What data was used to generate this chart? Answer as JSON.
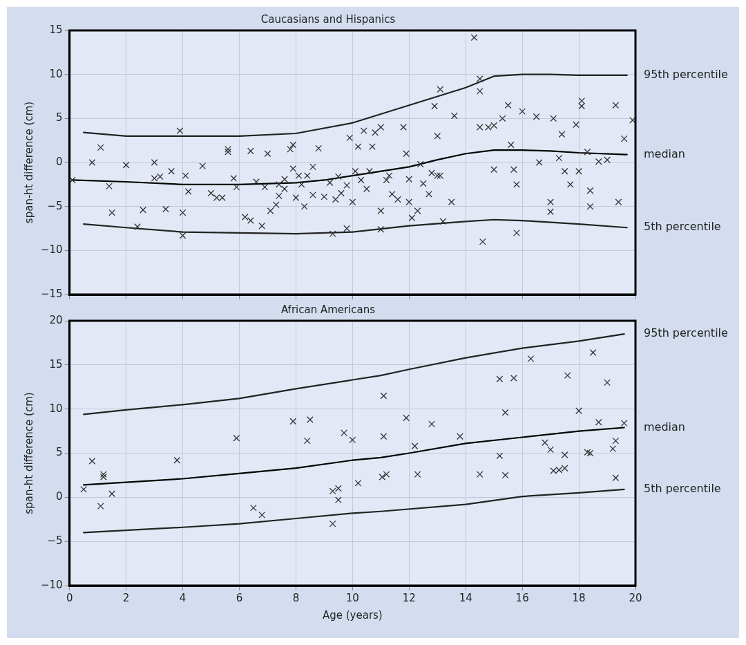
{
  "chart_data": [
    {
      "type": "scatter",
      "title": "Caucasians and Hispanics",
      "ylabel": "span-ht difference (cm)",
      "xlim": [
        0,
        20
      ],
      "xticks": [
        0,
        2,
        4,
        6,
        8,
        10,
        12,
        14,
        16,
        18,
        20
      ],
      "ylim": [
        -15,
        15
      ],
      "yticks": [
        -15,
        -10,
        -5,
        0,
        5,
        10,
        15
      ],
      "grid": true,
      "legend": false,
      "tick_labels": "y",
      "series": [
        {
          "marker": "cross",
          "color": "#333333",
          "x": [
            0.1,
            0.8,
            1.1,
            1.4,
            1.5,
            2.0,
            2.4,
            2.6,
            3.0,
            3.0,
            3.2,
            3.4,
            3.6,
            3.9,
            4.0,
            4.0,
            4.1,
            4.2,
            4.7,
            5.0,
            5.2,
            5.4,
            5.6,
            5.6,
            5.8,
            5.9,
            6.2,
            6.4,
            6.4,
            6.6,
            6.8,
            6.9,
            7.0,
            7.1,
            7.3,
            7.4,
            7.4,
            7.6,
            7.6,
            7.8,
            7.9,
            7.9,
            8.0,
            8.1,
            8.2,
            8.3,
            8.4,
            8.6,
            8.6,
            8.8,
            9.0,
            9.2,
            9.3,
            9.4,
            9.5,
            9.6,
            9.8,
            9.8,
            9.9,
            10.0,
            10.1,
            10.2,
            10.3,
            10.4,
            10.5,
            10.6,
            10.7,
            10.8,
            11.0,
            11.0,
            11.0,
            11.2,
            11.3,
            11.4,
            11.6,
            11.8,
            11.9,
            12.0,
            12.0,
            12.1,
            12.3,
            12.4,
            12.5,
            12.7,
            12.8,
            12.9,
            13.0,
            13.0,
            13.1,
            13.1,
            13.2,
            13.5,
            13.6,
            14.3,
            14.5,
            14.5,
            14.5,
            14.6,
            14.8,
            15.0,
            15.0,
            15.3,
            15.5,
            15.6,
            15.7,
            15.8,
            15.8,
            16.0,
            16.5,
            16.6,
            17.0,
            17.0,
            17.1,
            17.3,
            17.4,
            17.5,
            17.7,
            17.9,
            18.0,
            18.1,
            18.1,
            18.3,
            18.4,
            18.4,
            18.7,
            19.0,
            19.3,
            19.4,
            19.6,
            19.9
          ],
          "values": [
            -2,
            0,
            1.7,
            -2.7,
            -5.7,
            -0.3,
            -7.3,
            -5.4,
            0,
            -1.8,
            -1.6,
            -5.3,
            -1.0,
            3.6,
            -5.7,
            -8.3,
            -1.5,
            -3.3,
            -0.4,
            -3.5,
            -4.0,
            -4,
            1.5,
            1.2,
            -1.8,
            -2.8,
            -6.2,
            -6.6,
            1.3,
            -2.2,
            -7.2,
            -2.8,
            1.0,
            -5.5,
            -4.8,
            -2.5,
            -3.8,
            -3,
            -1.9,
            1.5,
            -0.7,
            2.0,
            -4.0,
            -1.5,
            -2.5,
            -5.0,
            -1.5,
            -3.7,
            -0.5,
            1.6,
            -3.9,
            -2.3,
            -8.1,
            -4.2,
            -1.6,
            -3.5,
            -7.5,
            -2.6,
            2.8,
            -4.5,
            -1.0,
            1.8,
            -2.0,
            3.6,
            -3,
            -1.0,
            1.8,
            3.4,
            -5.5,
            -7.6,
            4.0,
            -2.0,
            -1.5,
            -3.6,
            -4.2,
            4.0,
            1.0,
            -1.9,
            -4.5,
            -6.3,
            -5.5,
            -0.2,
            -2.4,
            -3.6,
            -1.2,
            6.4,
            3.0,
            -1.5,
            8.3,
            -1.5,
            -6.7,
            -4.5,
            5.3,
            14.2,
            9.5,
            8.1,
            4.0,
            -9.0,
            4.0,
            4.2,
            -0.8,
            5.0,
            6.5,
            2.0,
            -0.8,
            -2.5,
            -8.0,
            5.8,
            5.2,
            0,
            -4.5,
            -5.6,
            5.0,
            0.5,
            3.2,
            -1.0,
            -2.5,
            4.3,
            -1.0,
            7.0,
            6.4,
            1.2,
            -3.2,
            -5.0,
            0.1,
            0.3,
            6.5,
            -4.5,
            2.7,
            4.8
          ]
        },
        {
          "type": "line",
          "name": "95th percentile",
          "color": "#222222",
          "x": [
            0.5,
            2,
            4,
            6,
            8,
            10,
            12,
            14,
            15,
            16,
            17,
            18,
            19.7
          ],
          "values": [
            3.4,
            3.0,
            3.0,
            3.0,
            3.3,
            4.5,
            6.5,
            8.5,
            9.8,
            10.0,
            10.0,
            9.9,
            9.9
          ]
        },
        {
          "type": "line",
          "name": "median",
          "color": "#000000",
          "x": [
            0.1,
            2,
            4,
            6,
            8,
            9,
            10,
            12,
            13,
            14,
            15,
            16,
            17,
            18,
            19.7
          ],
          "values": [
            -2,
            -2.2,
            -2.5,
            -2.5,
            -2.3,
            -2.0,
            -1.5,
            -0.5,
            0.3,
            1.0,
            1.4,
            1.4,
            1.3,
            1.1,
            0.9
          ]
        },
        {
          "type": "line",
          "name": "5th percentile",
          "color": "#222222",
          "x": [
            0.5,
            2,
            4,
            6,
            8,
            10,
            12,
            14,
            15,
            16,
            18,
            19.7
          ],
          "values": [
            -7.0,
            -7.4,
            -7.9,
            -8.0,
            -8.1,
            -7.9,
            -7.2,
            -6.7,
            -6.5,
            -6.6,
            -7.0,
            -7.4
          ]
        }
      ]
    },
    {
      "type": "scatter",
      "title": "African Americans",
      "xlabel": "Age (years)",
      "ylabel": "span-ht difference (cm)",
      "xlim": [
        0,
        20
      ],
      "xticks": [
        0,
        2,
        4,
        6,
        8,
        10,
        12,
        14,
        16,
        18,
        20
      ],
      "ylim": [
        -10,
        20
      ],
      "yticks": [
        -10,
        -5,
        0,
        5,
        10,
        15,
        20
      ],
      "grid": true,
      "legend": false,
      "series": [
        {
          "marker": "cross",
          "color": "#333333",
          "x": [
            0.5,
            0.8,
            1.1,
            1.2,
            1.2,
            1.5,
            3.8,
            5.9,
            6.5,
            6.8,
            7.9,
            8.4,
            8.5,
            9.3,
            9.3,
            9.5,
            9.5,
            9.7,
            10.0,
            10.2,
            11.1,
            11.1,
            11.05,
            11.2,
            11.9,
            12.2,
            12.3,
            12.8,
            13.8,
            14.5,
            15.2,
            15.2,
            15.4,
            15.4,
            15.7,
            16.3,
            16.8,
            17.0,
            17.1,
            17.3,
            17.5,
            17.5,
            17.6,
            18.0,
            18.3,
            18.4,
            18.5,
            18.7,
            19.0,
            19.2,
            19.3,
            19.3,
            19.6
          ],
          "values": [
            0.9,
            4.1,
            -1.0,
            2.3,
            2.6,
            0.4,
            4.2,
            6.7,
            -1.2,
            -2.0,
            8.6,
            6.4,
            8.8,
            0.7,
            -3.0,
            1.0,
            -0.3,
            7.3,
            6.5,
            1.6,
            11.5,
            6.9,
            2.3,
            2.6,
            9.0,
            5.8,
            2.6,
            8.3,
            6.9,
            2.6,
            4.7,
            13.4,
            9.6,
            2.5,
            13.5,
            15.7,
            6.2,
            5.4,
            3.0,
            3.1,
            4.8,
            3.3,
            13.8,
            9.8,
            5.1,
            5.0,
            16.4,
            8.5,
            13.0,
            5.5,
            6.4,
            2.2,
            8.4
          ]
        },
        {
          "type": "line",
          "name": "95th percentile",
          "color": "#222222",
          "x": [
            0.5,
            2,
            4,
            6,
            8,
            10,
            11,
            12,
            14,
            16,
            18,
            19.6
          ],
          "values": [
            9.4,
            9.9,
            10.5,
            11.2,
            12.3,
            13.3,
            13.8,
            14.5,
            15.8,
            16.9,
            17.7,
            18.5
          ]
        },
        {
          "type": "line",
          "name": "median",
          "color": "#000000",
          "x": [
            0.5,
            2,
            4,
            6,
            8,
            10,
            11,
            12,
            14,
            16,
            18,
            19.6
          ],
          "values": [
            1.4,
            1.7,
            2.1,
            2.7,
            3.3,
            4.2,
            4.5,
            5.0,
            6.1,
            6.8,
            7.5,
            7.9
          ]
        },
        {
          "type": "line",
          "name": "5th percentile",
          "color": "#222222",
          "x": [
            0.5,
            4,
            6,
            8,
            10,
            11,
            14,
            16,
            18,
            19.6
          ],
          "values": [
            -4.0,
            -3.4,
            -3.0,
            -2.4,
            -1.8,
            -1.6,
            -0.8,
            0.1,
            0.5,
            0.9
          ]
        }
      ]
    }
  ]
}
